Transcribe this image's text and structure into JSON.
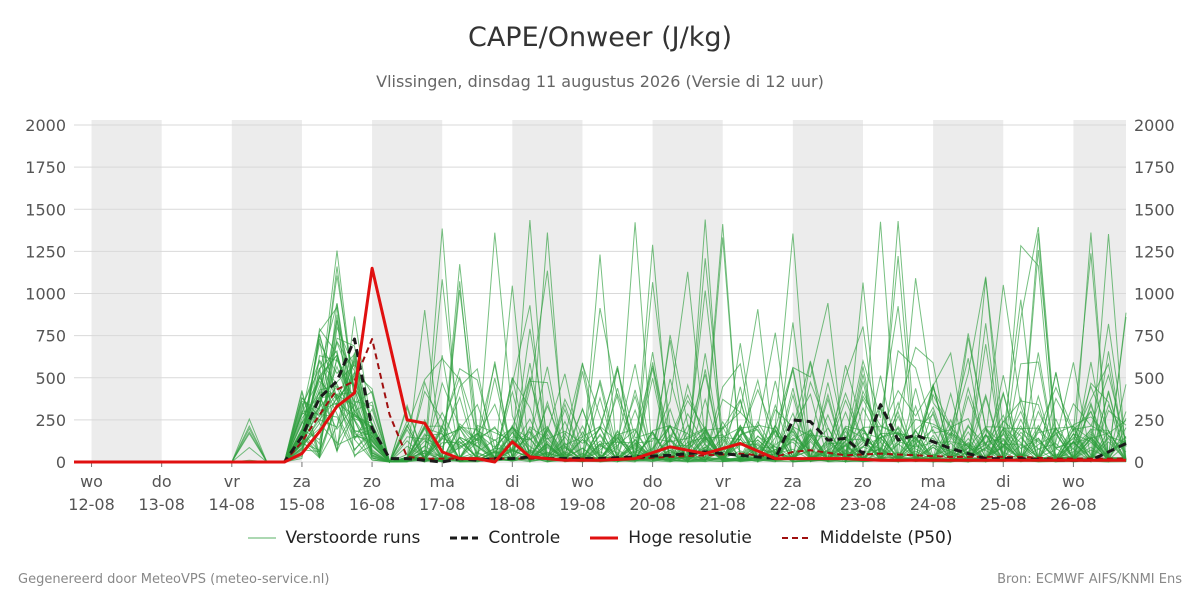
{
  "title": "CAPE/Onweer (J/kg)",
  "subtitle": "Vlissingen, dinsdag 11 augustus 2026 (Versie di 12 uur)",
  "footer": {
    "left": "Gegenereerd door MeteoVPS (meteo-service.nl)",
    "right": "Bron: ECMWF AIFS/KNMI Ens"
  },
  "legend": [
    {
      "key": "perturbed",
      "label": "Verstoorde runs"
    },
    {
      "key": "control",
      "label": "Controle"
    },
    {
      "key": "hires",
      "label": "Hoge resolutie"
    },
    {
      "key": "p50",
      "label": "Middelste (P50)"
    }
  ],
  "colors": {
    "perturbed": "#2e9e3e",
    "control": "#1a1a1a",
    "hires": "#e01010",
    "p50": "#a01010",
    "shade": "#ececec",
    "grid": "#d9d9d9"
  },
  "chart_data": {
    "type": "line",
    "x_unit": "days since 11-08 12:00",
    "xlim": [
      0,
      15.0
    ],
    "ylim": [
      0,
      2000
    ],
    "yticks": [
      0,
      250,
      500,
      750,
      1000,
      1250,
      1500,
      1750,
      2000
    ],
    "grid": "horizontal",
    "legend_position": "bottom",
    "shaded_days": [
      {
        "start": 0.25,
        "end": 1.25
      },
      {
        "start": 2.25,
        "end": 3.25
      },
      {
        "start": 4.25,
        "end": 5.25
      },
      {
        "start": 6.25,
        "end": 7.25
      },
      {
        "start": 8.25,
        "end": 9.25
      },
      {
        "start": 10.25,
        "end": 11.25
      },
      {
        "start": 12.25,
        "end": 13.25
      },
      {
        "start": 14.25,
        "end": 15.0
      }
    ],
    "x_ticks": [
      {
        "x": 0.25,
        "day": "wo",
        "date": "12-08"
      },
      {
        "x": 1.25,
        "day": "do",
        "date": "13-08"
      },
      {
        "x": 2.25,
        "day": "vr",
        "date": "14-08"
      },
      {
        "x": 3.25,
        "day": "za",
        "date": "15-08"
      },
      {
        "x": 4.25,
        "day": "zo",
        "date": "16-08"
      },
      {
        "x": 5.25,
        "day": "ma",
        "date": "17-08"
      },
      {
        "x": 6.25,
        "day": "di",
        "date": "18-08"
      },
      {
        "x": 7.25,
        "day": "wo",
        "date": "19-08"
      },
      {
        "x": 8.25,
        "day": "do",
        "date": "20-08"
      },
      {
        "x": 9.25,
        "day": "vr",
        "date": "21-08"
      },
      {
        "x": 10.25,
        "day": "za",
        "date": "22-08"
      },
      {
        "x": 11.25,
        "day": "zo",
        "date": "23-08"
      },
      {
        "x": 12.25,
        "day": "ma",
        "date": "24-08"
      },
      {
        "x": 13.25,
        "day": "di",
        "date": "25-08"
      },
      {
        "x": 14.25,
        "day": "wo",
        "date": "26-08"
      }
    ],
    "series": [
      {
        "name": "Controle",
        "x": [
          0,
          0.5,
          1,
          1.5,
          2,
          2.5,
          3,
          3.25,
          3.5,
          3.75,
          4,
          4.25,
          4.5,
          4.75,
          5,
          5.25,
          5.5,
          5.75,
          6,
          6.25,
          6.5,
          6.75,
          7,
          7.5,
          8,
          8.5,
          9,
          9.5,
          10,
          10.25,
          10.5,
          10.75,
          11,
          11.25,
          11.5,
          11.75,
          12,
          12.5,
          13,
          13.5,
          14,
          14.5,
          15.0
        ],
        "y": [
          0,
          0,
          0,
          0,
          0,
          0,
          0,
          150,
          380,
          480,
          730,
          200,
          20,
          20,
          10,
          0,
          20,
          10,
          20,
          20,
          30,
          20,
          20,
          20,
          30,
          40,
          60,
          40,
          20,
          250,
          240,
          130,
          140,
          50,
          340,
          130,
          160,
          80,
          20,
          20,
          10,
          10,
          110
        ]
      },
      {
        "name": "Hoge resolutie",
        "x": [
          0,
          0.5,
          1,
          1.5,
          2,
          2.5,
          3,
          3.25,
          3.5,
          3.75,
          4,
          4.25,
          4.5,
          4.75,
          5,
          5.25,
          5.5,
          5.75,
          6,
          6.25,
          6.5,
          6.75,
          7,
          7.5,
          8,
          8.5,
          9,
          9.5,
          10,
          10.5,
          11,
          11.5,
          12,
          12.5,
          13,
          13.5,
          14,
          14.5,
          15.0
        ],
        "y": [
          0,
          0,
          0,
          0,
          0,
          0,
          0,
          50,
          180,
          330,
          410,
          1150,
          700,
          250,
          230,
          60,
          20,
          20,
          0,
          120,
          30,
          20,
          10,
          10,
          20,
          90,
          50,
          110,
          20,
          20,
          20,
          10,
          10,
          10,
          10,
          10,
          10,
          10,
          10
        ]
      },
      {
        "name": "Middelste (P50)",
        "x": [
          0,
          0.5,
          1,
          1.5,
          2,
          2.5,
          3,
          3.25,
          3.5,
          3.75,
          4,
          4.25,
          4.5,
          4.75,
          5,
          5.5,
          6,
          6.5,
          7,
          7.5,
          8,
          8.5,
          9,
          9.5,
          10,
          10.25,
          10.5,
          11,
          11.5,
          12,
          12.5,
          13,
          13.5,
          14,
          14.5,
          15.0
        ],
        "y": [
          0,
          0,
          0,
          0,
          0,
          0,
          0,
          120,
          280,
          430,
          480,
          730,
          280,
          30,
          20,
          20,
          20,
          20,
          20,
          20,
          20,
          30,
          40,
          50,
          30,
          60,
          70,
          40,
          50,
          40,
          30,
          30,
          30,
          20,
          20,
          20
        ]
      }
    ],
    "ensemble_members": 50
  }
}
